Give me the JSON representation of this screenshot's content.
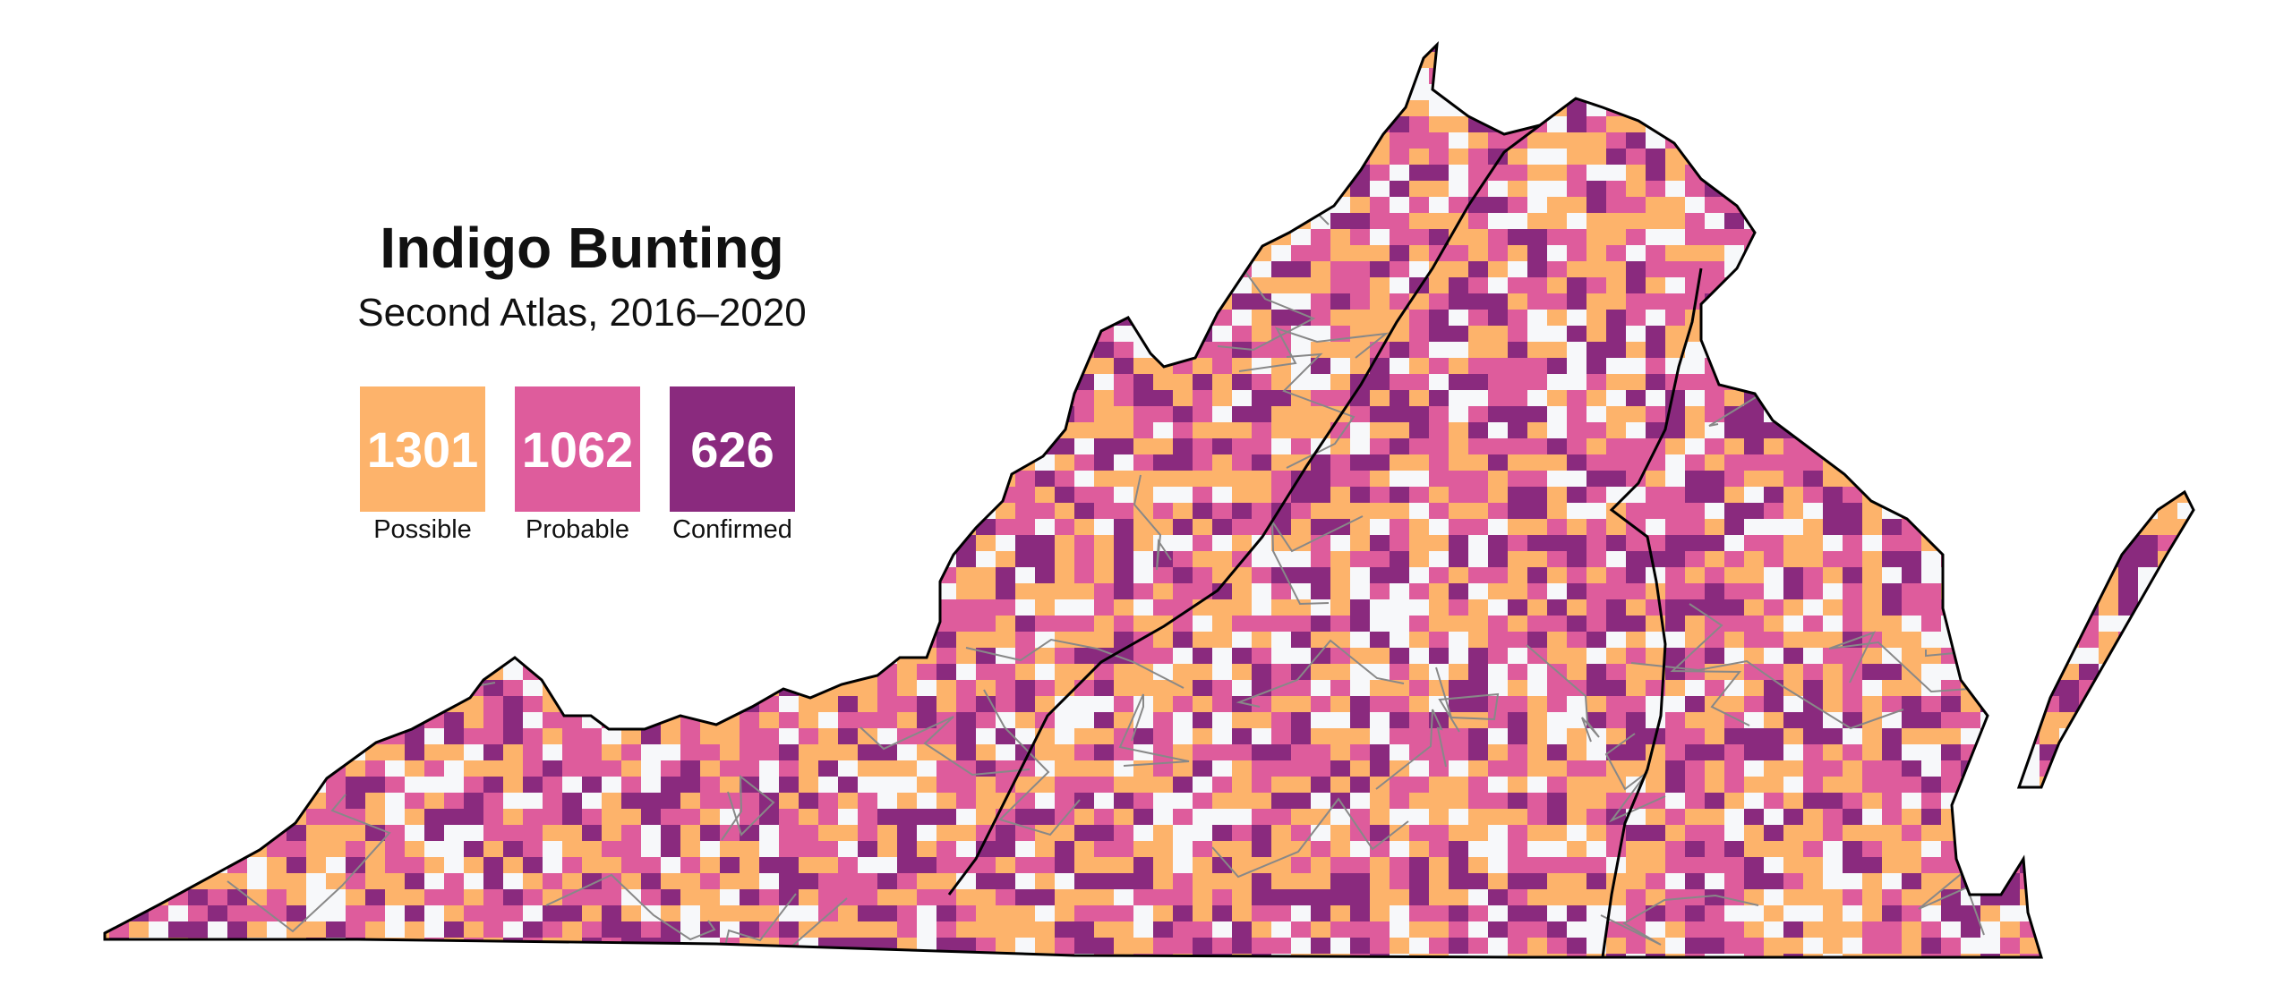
{
  "title": "Indigo Bunting",
  "subtitle": "Second Atlas, 2016–2020",
  "legend": [
    {
      "label": "Possible",
      "count": "1301",
      "color": "#fdb36b"
    },
    {
      "label": "Probable",
      "count": "1062",
      "color": "#de5c9c"
    },
    {
      "label": "Confirmed",
      "count": "626",
      "color": "#8a2a7e"
    }
  ],
  "colors": {
    "background": "#ffffff",
    "state_outline": "#000000",
    "county_lines": "#888888",
    "empty_block": "#f7f8fa"
  }
}
